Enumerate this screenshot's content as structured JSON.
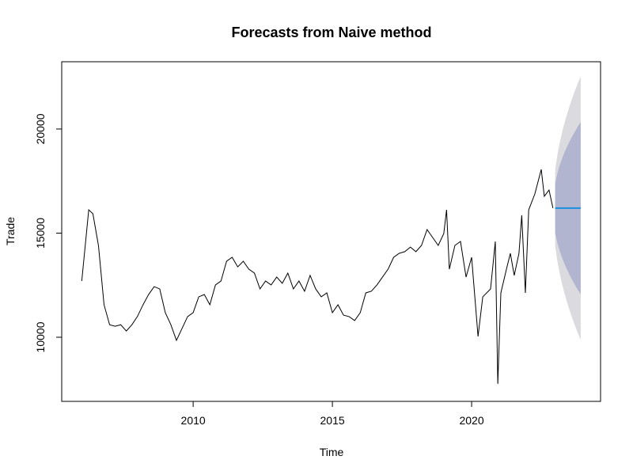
{
  "chart_data": {
    "type": "line",
    "title": "Forecasts from Naive method",
    "x_label": "Time",
    "y_label": "Trade",
    "x": [
      2006.0,
      2006.25,
      2006.4,
      2006.6,
      2006.8,
      2007.0,
      2007.2,
      2007.4,
      2007.6,
      2007.8,
      2008.0,
      2008.2,
      2008.4,
      2008.6,
      2008.8,
      2009.0,
      2009.2,
      2009.4,
      2009.6,
      2009.8,
      2010.0,
      2010.2,
      2010.4,
      2010.6,
      2010.8,
      2011.0,
      2011.2,
      2011.4,
      2011.6,
      2011.8,
      2012.0,
      2012.2,
      2012.4,
      2012.6,
      2012.8,
      2013.0,
      2013.2,
      2013.4,
      2013.6,
      2013.8,
      2014.0,
      2014.2,
      2014.4,
      2014.6,
      2014.8,
      2015.0,
      2015.2,
      2015.4,
      2015.6,
      2015.8,
      2016.0,
      2016.2,
      2016.4,
      2016.6,
      2016.8,
      2017.0,
      2017.2,
      2017.4,
      2017.6,
      2017.8,
      2018.0,
      2018.2,
      2018.4,
      2018.6,
      2018.8,
      2019.0,
      2019.1,
      2019.2,
      2019.4,
      2019.6,
      2019.8,
      2020.0,
      2020.23,
      2020.4,
      2020.68,
      2020.85,
      2020.94,
      2021.05,
      2021.25,
      2021.39,
      2021.53,
      2021.7,
      2021.8,
      2021.93,
      2022.05,
      2022.27,
      2022.5,
      2022.61,
      2022.78,
      2022.92
    ],
    "series": [
      {
        "color": "#000000",
        "values": [
          12700,
          16120,
          15930,
          14400,
          11560,
          10600,
          10530,
          10600,
          10300,
          10600,
          11000,
          11560,
          12050,
          12430,
          12320,
          11180,
          10600,
          9850,
          10420,
          10990,
          11180,
          11940,
          12050,
          11560,
          12510,
          12700,
          13650,
          13840,
          13380,
          13650,
          13270,
          13080,
          12320,
          12700,
          12510,
          12890,
          12590,
          13080,
          12320,
          12700,
          12210,
          12970,
          12320,
          11940,
          12130,
          11180,
          11560,
          11060,
          10990,
          10800,
          11180,
          12130,
          12210,
          12510,
          12890,
          13270,
          13840,
          14030,
          14110,
          14330,
          14110,
          14410,
          15170,
          14790,
          14410,
          14980,
          16120,
          13270,
          14410,
          14600,
          12890,
          13840,
          10040,
          11940,
          12320,
          14600,
          7760,
          12130,
          13270,
          14030,
          12970,
          14030,
          15860,
          12130,
          16120,
          16880,
          18060,
          16770,
          17070,
          16200
        ]
      }
    ],
    "forecast": {
      "x": [
        2023.0,
        2023.083,
        2023.167,
        2023.25,
        2023.333,
        2023.417,
        2023.5,
        2023.583,
        2023.667,
        2023.75,
        2023.833,
        2023.917
      ],
      "mean": [
        16200,
        16200,
        16200,
        16200,
        16200,
        16200,
        16200,
        16200,
        16200,
        16200,
        16200,
        16200
      ],
      "mean_color": "#1a8fe0",
      "hi95": [
        18027,
        18784,
        19364,
        19854,
        20285,
        20675,
        21034,
        21367,
        21681,
        21977,
        22260,
        22529
      ],
      "lo95": [
        14373,
        13616,
        13036,
        12546,
        12115,
        11725,
        11366,
        11033,
        10719,
        10423,
        10140,
        9871
      ],
      "hi80": [
        17394,
        17889,
        18268,
        18588,
        18870,
        19124,
        19359,
        19577,
        19782,
        19976,
        20160,
        20336
      ],
      "lo80": [
        15006,
        14511,
        14132,
        13812,
        13530,
        13276,
        13041,
        12823,
        12618,
        12424,
        12240,
        12064
      ],
      "color95": "#dbdbdf",
      "color80": "#b1b5cf"
    },
    "xlim": [
      2005.28,
      2024.63
    ],
    "ylim": [
      6920,
      23230
    ],
    "xticks": [
      2010,
      2015,
      2020
    ],
    "yticks": [
      10000,
      15000,
      20000
    ]
  }
}
